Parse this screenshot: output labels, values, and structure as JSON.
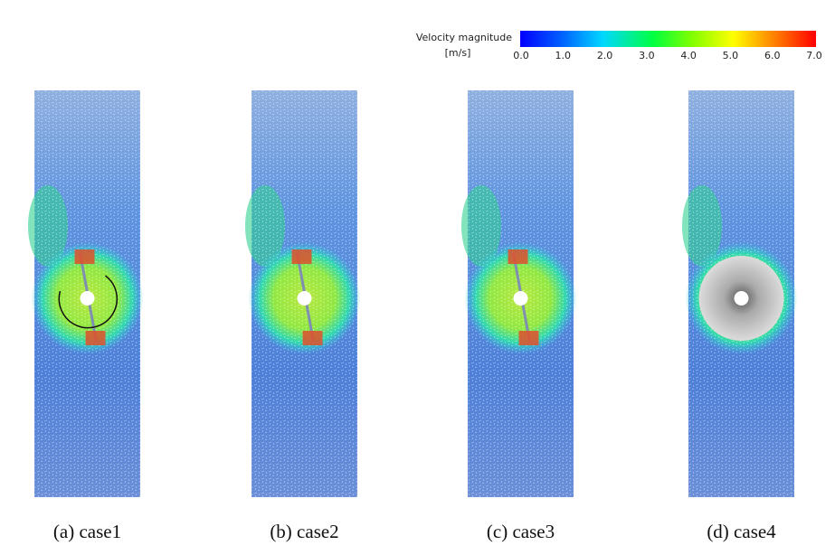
{
  "colorbar": {
    "title": "Velocity magnitude",
    "unit": "[m/s]",
    "range": [
      0,
      7
    ],
    "ticks": [
      {
        "value": 0,
        "label": "0.0"
      },
      {
        "value": 1,
        "label": "1.0"
      },
      {
        "value": 2,
        "label": "2.0"
      },
      {
        "value": 3,
        "label": "3.0"
      },
      {
        "value": 4,
        "label": "4.0"
      },
      {
        "value": 5,
        "label": "5.0"
      },
      {
        "value": 6,
        "label": "6.0"
      },
      {
        "value": 7,
        "label": "7.0"
      }
    ]
  },
  "panels": [
    {
      "caption": "(a)  case1"
    },
    {
      "caption": "(b)  case2"
    },
    {
      "caption": "(c)  case3"
    },
    {
      "caption": "(d)  case4"
    }
  ]
}
